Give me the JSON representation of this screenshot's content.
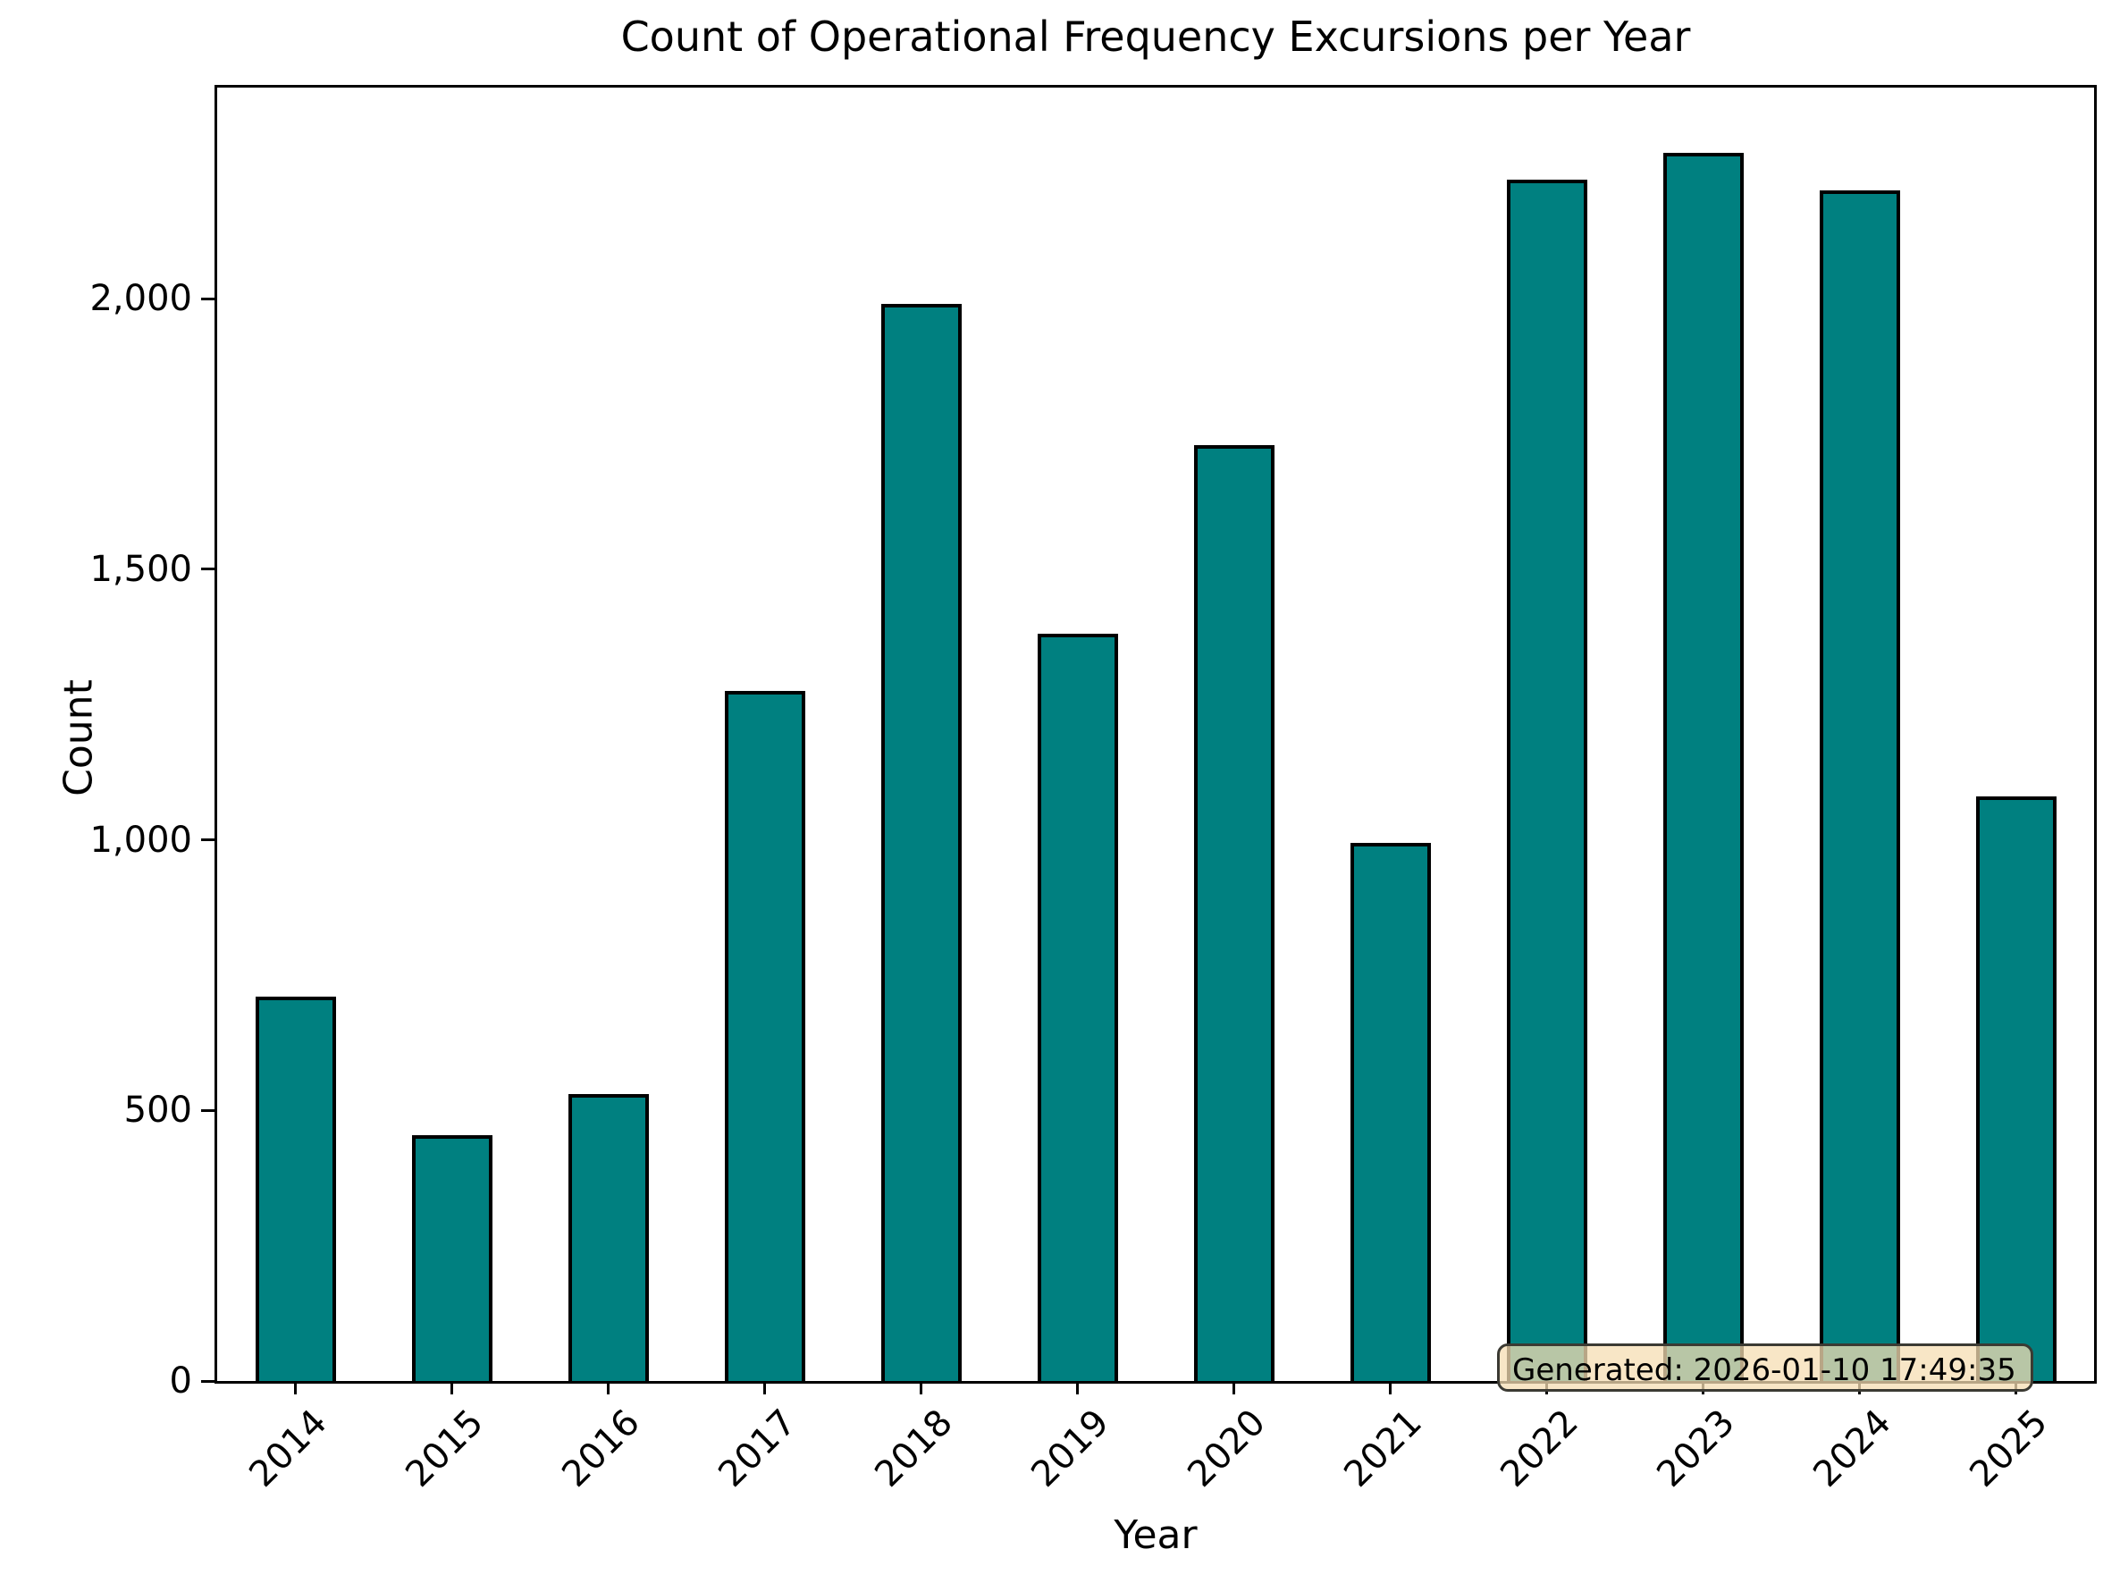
{
  "chart_data": {
    "type": "bar",
    "title": "Count of Operational Frequency Excursions per Year",
    "xlabel": "Year",
    "ylabel": "Count",
    "categories": [
      "2014",
      "2015",
      "2016",
      "2017",
      "2018",
      "2019",
      "2020",
      "2021",
      "2022",
      "2023",
      "2024",
      "2025"
    ],
    "values": [
      710,
      455,
      530,
      1275,
      1990,
      1380,
      1730,
      995,
      2220,
      2270,
      2200,
      1080
    ],
    "ylim": [
      0,
      2390
    ],
    "yticks": [
      {
        "value": 0,
        "label": "0"
      },
      {
        "value": 500,
        "label": "500"
      },
      {
        "value": 1000,
        "label": "1,000"
      },
      {
        "value": 1500,
        "label": "1,500"
      },
      {
        "value": 2000,
        "label": "2,000"
      }
    ],
    "grid": false,
    "legend": "none",
    "bar_color": "#008080",
    "bar_edge_color": "#000000",
    "annotation": {
      "text": "Generated: 2026-01-10 17:49:35",
      "background_color": "#F5DEB3",
      "border_color": "#3b3a33"
    }
  }
}
